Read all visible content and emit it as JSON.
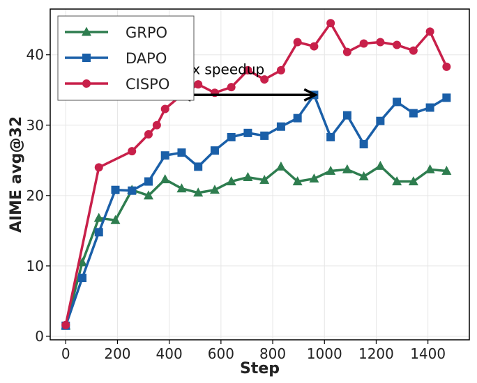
{
  "chart_data": {
    "type": "line",
    "xlabel": "Step",
    "ylabel": "AIME avg@32",
    "xlim": [
      -60,
      1560
    ],
    "ylim": [
      -0.5,
      46.5
    ],
    "xticks": [
      0,
      200,
      400,
      600,
      800,
      1000,
      1200,
      1400
    ],
    "yticks": [
      0,
      10,
      20,
      30,
      40
    ],
    "grid": true,
    "legend_position": "top-left",
    "series": [
      {
        "name": "GRPO",
        "color": "#2e7d4f",
        "marker": "triangle",
        "x": [
          0,
          64,
          128,
          192,
          256,
          320,
          384,
          448,
          512,
          576,
          640,
          704,
          768,
          832,
          896,
          960,
          1024,
          1088,
          1152,
          1216,
          1280,
          1344,
          1408,
          1472
        ],
        "y": [
          1.5,
          10.5,
          16.8,
          16.5,
          20.8,
          20.0,
          22.3,
          21.0,
          20.4,
          20.8,
          22.0,
          22.6,
          22.2,
          24.1,
          22.0,
          22.4,
          23.5,
          23.7,
          22.7,
          24.2,
          22.0,
          22.0,
          23.7,
          23.5
        ]
      },
      {
        "name": "DAPO",
        "color": "#1a5fa8",
        "marker": "square",
        "x": [
          0,
          64,
          128,
          192,
          256,
          320,
          384,
          448,
          512,
          576,
          640,
          704,
          768,
          832,
          896,
          960,
          1024,
          1088,
          1152,
          1216,
          1280,
          1344,
          1408,
          1472
        ],
        "y": [
          1.5,
          8.3,
          14.8,
          20.8,
          20.7,
          22.0,
          25.7,
          26.1,
          24.1,
          26.4,
          28.3,
          28.9,
          28.5,
          29.8,
          31.0,
          34.3,
          28.3,
          31.4,
          27.3,
          30.6,
          33.3,
          31.7,
          32.5,
          33.9
        ]
      },
      {
        "name": "CISPO",
        "color": "#c8204a",
        "marker": "circle",
        "x": [
          0,
          128,
          256,
          320,
          352,
          384,
          448,
          512,
          576,
          640,
          704,
          768,
          832,
          896,
          960,
          1024,
          1088,
          1152,
          1216,
          1280,
          1344,
          1408,
          1472
        ],
        "y": [
          1.6,
          24.0,
          26.3,
          28.7,
          30.0,
          32.3,
          34.3,
          35.8,
          34.6,
          35.4,
          37.8,
          36.5,
          37.8,
          41.8,
          41.2,
          44.5,
          40.4,
          41.6,
          41.8,
          41.4,
          40.6,
          43.3,
          38.3
        ]
      }
    ],
    "annotations": [
      {
        "text": "2x speedup",
        "arrow_from": [
          440,
          34.3
        ],
        "arrow_to": [
          965,
          34.3
        ]
      }
    ]
  }
}
